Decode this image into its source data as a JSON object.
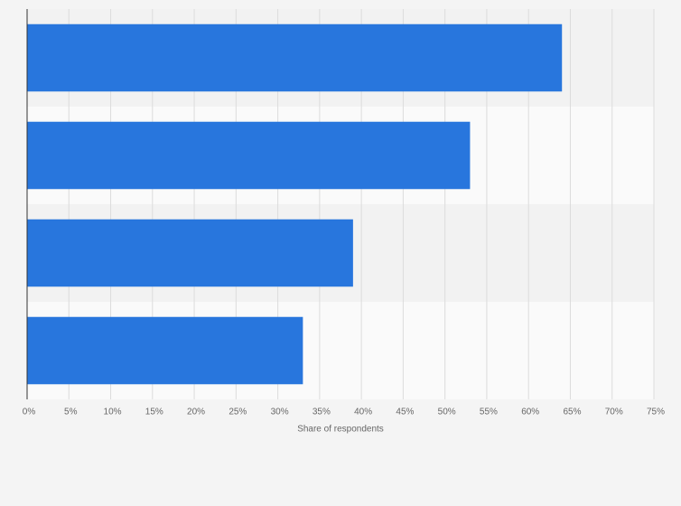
{
  "chart_data": {
    "type": "bar",
    "orientation": "horizontal",
    "categories": [
      null,
      null,
      null,
      null
    ],
    "values": [
      64,
      53,
      39,
      33
    ],
    "color": "#2876dd",
    "xlabel": "Share of respondents",
    "xlim": [
      0,
      75
    ],
    "xticks": [
      {
        "value": 0,
        "label": "0%"
      },
      {
        "value": 5,
        "label": "5%"
      },
      {
        "value": 10,
        "label": "10%"
      },
      {
        "value": 15,
        "label": "15%"
      },
      {
        "value": 20,
        "label": "20%"
      },
      {
        "value": 25,
        "label": "25%"
      },
      {
        "value": 30,
        "label": "30%"
      },
      {
        "value": 35,
        "label": "35%"
      },
      {
        "value": 40,
        "label": "40%"
      },
      {
        "value": 45,
        "label": "45%"
      },
      {
        "value": 50,
        "label": "50%"
      },
      {
        "value": 55,
        "label": "55%"
      },
      {
        "value": 60,
        "label": "60%"
      },
      {
        "value": 65,
        "label": "65%"
      },
      {
        "value": 70,
        "label": "70%"
      },
      {
        "value": 75,
        "label": "75%"
      }
    ],
    "grid": true
  }
}
